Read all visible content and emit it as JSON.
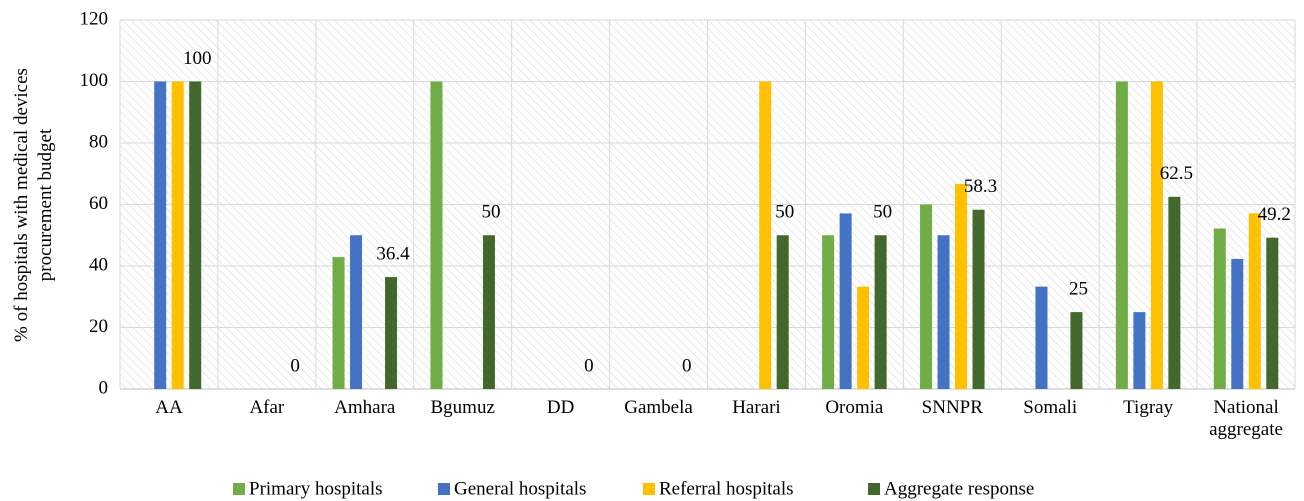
{
  "chart_data": {
    "type": "bar",
    "y_label": "% of hospitals with medical devices procurement budget",
    "categories": [
      "AA",
      "Afar",
      "Amhara",
      "Bgumuz",
      "DD",
      "Gambela",
      "Harari",
      "Oromia",
      "SNNPR",
      "Somali",
      "Tigray",
      "National aggregate"
    ],
    "series": [
      {
        "name": "Primary hospitals",
        "color": "#70ad47",
        "values": [
          0,
          0,
          42.9,
          100,
          0,
          0,
          0,
          50,
          60,
          0,
          100,
          52.2
        ]
      },
      {
        "name": "General hospitals",
        "color": "#4472c4",
        "values": [
          100,
          0,
          50,
          0,
          0,
          0,
          0,
          57.1,
          50,
          33.3,
          25,
          42.3
        ]
      },
      {
        "name": "Referral hospitals",
        "color": "#ffc000",
        "values": [
          100,
          0,
          0,
          0,
          0,
          0,
          100,
          33.3,
          66.7,
          0,
          100,
          57.1
        ]
      },
      {
        "name": "Aggregate response",
        "color": "#43682b",
        "values": [
          100,
          0,
          36.4,
          50,
          0,
          0,
          50,
          50,
          58.3,
          25,
          62.5,
          49.2
        ],
        "show_values": true
      }
    ],
    "ylim": [
      0,
      120
    ],
    "yticks": [
      0,
      20,
      40,
      60,
      80,
      100,
      120
    ],
    "grid": true,
    "legend": "bottom"
  }
}
